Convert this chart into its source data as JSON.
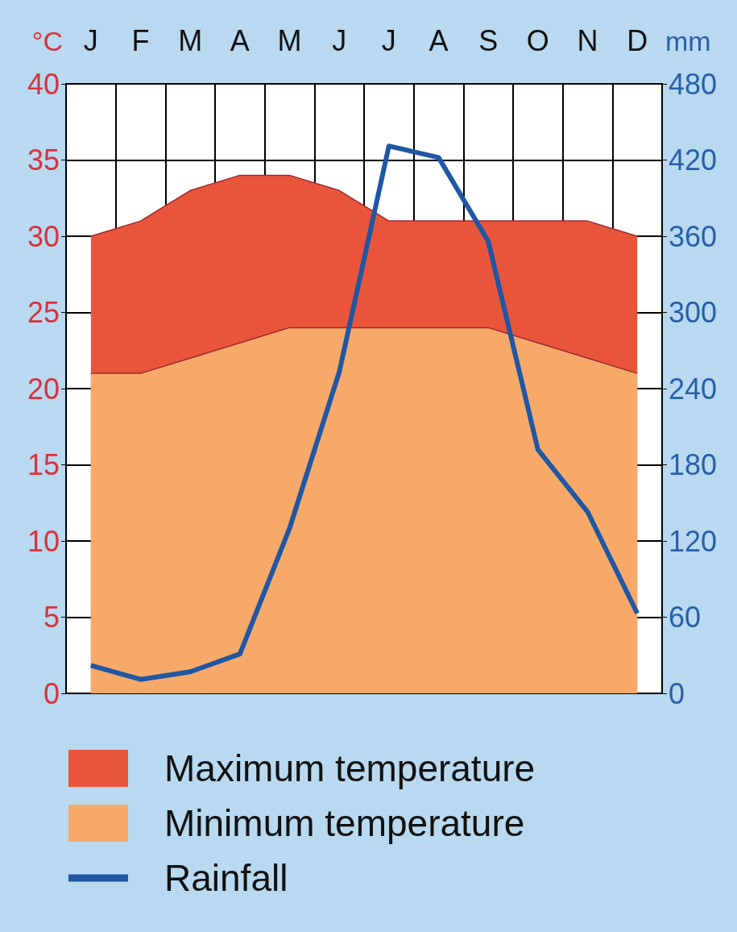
{
  "chart_data": {
    "type": "area",
    "categories": [
      "J",
      "F",
      "M",
      "A",
      "M",
      "J",
      "J",
      "A",
      "S",
      "O",
      "N",
      "D"
    ],
    "ylabel": "°C",
    "y2label": "mm",
    "series": [
      {
        "name": "Maximum temperature",
        "color": "#e9553b",
        "values": [
          30,
          31,
          33,
          34,
          34,
          33,
          31,
          31,
          31,
          31,
          31,
          30
        ]
      },
      {
        "name": "Minimum temperature",
        "color": "#f7a96a",
        "values": [
          21,
          21,
          22,
          23,
          24,
          24,
          24,
          24,
          24,
          23,
          22,
          21
        ]
      },
      {
        "name": "Rainfall",
        "type": "line",
        "axis": "y2",
        "color": "#1f57a4",
        "values": [
          22,
          11,
          17,
          31,
          130,
          253,
          431,
          422,
          356,
          192,
          143,
          63
        ]
      }
    ],
    "ylim": [
      0,
      40
    ],
    "yticks": [
      0,
      5,
      10,
      15,
      20,
      25,
      30,
      35,
      40
    ],
    "y2lim": [
      0,
      480
    ],
    "y2ticks": [
      0,
      60,
      120,
      180,
      240,
      300,
      360,
      420,
      480
    ],
    "grid": true,
    "legend": "bottom left",
    "marker": "none",
    "line_style": "solid"
  }
}
